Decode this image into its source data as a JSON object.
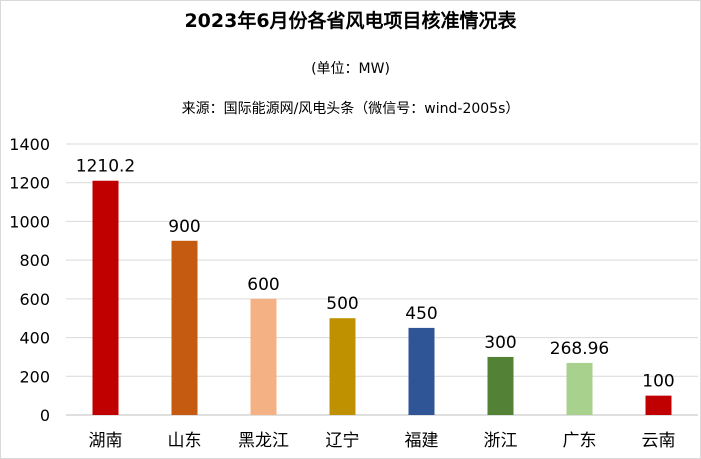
{
  "chart_data": {
    "type": "bar",
    "title": "2023年6月份各省风电项目核准情况表",
    "subtitle": "(单位：MW)",
    "source": "来源：国际能源网/风电头条（微信号：wind-2005s）",
    "categories": [
      "湖南",
      "山东",
      "黑龙江",
      "辽宁",
      "福建",
      "浙江",
      "广东",
      "云南"
    ],
    "values": [
      1210.2,
      900,
      600,
      500,
      450,
      300,
      268.96,
      100
    ],
    "value_labels": [
      "1210.2",
      "900",
      "600",
      "500",
      "450",
      "300",
      "268.96",
      "100"
    ],
    "colors": [
      "#c00000",
      "#c55a11",
      "#f4b183",
      "#bf9000",
      "#2f5597",
      "#538135",
      "#a9d18e",
      "#c00000"
    ],
    "ylim": [
      0,
      1400
    ],
    "yticks": [
      "0",
      "200",
      "400",
      "600",
      "800",
      "1000",
      "1200",
      "1400"
    ],
    "grid": true,
    "legend": "none"
  }
}
